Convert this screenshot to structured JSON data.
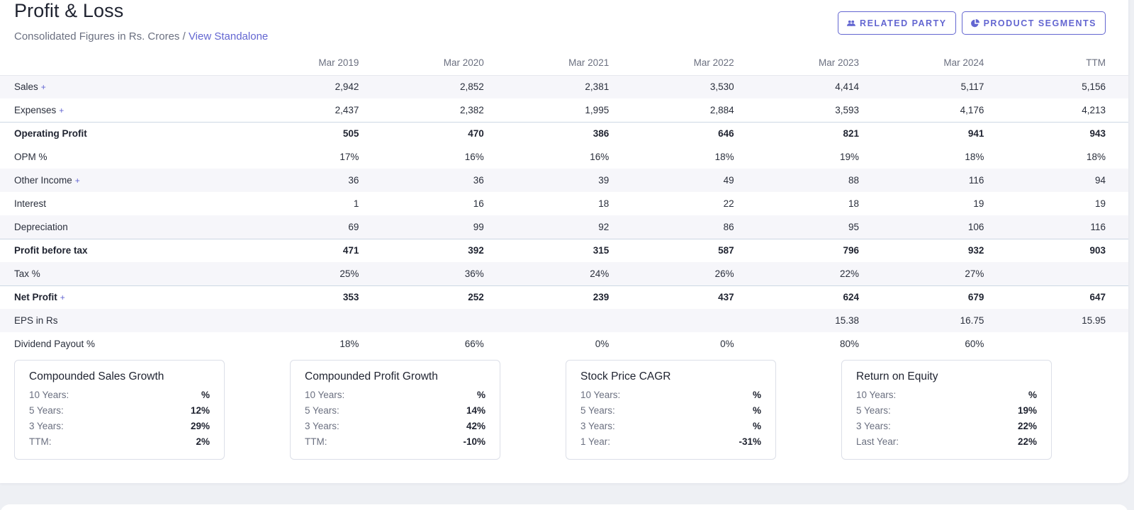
{
  "header": {
    "title": "Profit & Loss",
    "subtitle": "Consolidated Figures in Rs. Crores / ",
    "link": "View Standalone"
  },
  "buttons": {
    "related_party": "RELATED PARTY",
    "product_segments": "PRODUCT SEGMENTS"
  },
  "colors": {
    "accent": "#6366d1",
    "stripe": "#f6f6fa"
  },
  "table": {
    "columns": [
      "Mar 2019",
      "Mar 2020",
      "Mar 2021",
      "Mar 2022",
      "Mar 2023",
      "Mar 2024",
      "TTM"
    ],
    "rows": [
      {
        "label": "Sales",
        "expand": "+",
        "values": [
          "2,942",
          "2,852",
          "2,381",
          "3,530",
          "4,414",
          "5,117",
          "5,156"
        ]
      },
      {
        "label": "Expenses",
        "expand": "+",
        "values": [
          "2,437",
          "2,382",
          "1,995",
          "2,884",
          "3,593",
          "4,176",
          "4,213"
        ]
      },
      {
        "label": "Operating Profit",
        "values": [
          "505",
          "470",
          "386",
          "646",
          "821",
          "941",
          "943"
        ]
      },
      {
        "label": "OPM %",
        "values": [
          "17%",
          "16%",
          "16%",
          "18%",
          "19%",
          "18%",
          "18%"
        ]
      },
      {
        "label": "Other Income",
        "expand": "+",
        "values": [
          "36",
          "36",
          "39",
          "49",
          "88",
          "116",
          "94"
        ]
      },
      {
        "label": "Interest",
        "values": [
          "1",
          "16",
          "18",
          "22",
          "18",
          "19",
          "19"
        ]
      },
      {
        "label": "Depreciation",
        "values": [
          "69",
          "99",
          "92",
          "86",
          "95",
          "106",
          "116"
        ]
      },
      {
        "label": "Profit before tax",
        "values": [
          "471",
          "392",
          "315",
          "587",
          "796",
          "932",
          "903"
        ]
      },
      {
        "label": "Tax %",
        "values": [
          "25%",
          "36%",
          "24%",
          "26%",
          "22%",
          "27%",
          ""
        ]
      },
      {
        "label": "Net Profit",
        "expand": "+",
        "values": [
          "353",
          "252",
          "239",
          "437",
          "624",
          "679",
          "647"
        ]
      },
      {
        "label": "EPS in Rs",
        "values": [
          "",
          "",
          "",
          "",
          "15.38",
          "16.75",
          "15.95"
        ]
      },
      {
        "label": "Dividend Payout %",
        "values": [
          "18%",
          "66%",
          "0%",
          "0%",
          "80%",
          "60%",
          ""
        ]
      }
    ]
  },
  "growth": [
    {
      "title": "Compounded Sales Growth",
      "rows": [
        {
          "k": "10 Years:",
          "v": "%"
        },
        {
          "k": "5 Years:",
          "v": "12%"
        },
        {
          "k": "3 Years:",
          "v": "29%"
        },
        {
          "k": "TTM:",
          "v": "2%"
        }
      ]
    },
    {
      "title": "Compounded Profit Growth",
      "rows": [
        {
          "k": "10 Years:",
          "v": "%"
        },
        {
          "k": "5 Years:",
          "v": "14%"
        },
        {
          "k": "3 Years:",
          "v": "42%"
        },
        {
          "k": "TTM:",
          "v": "-10%"
        }
      ]
    },
    {
      "title": "Stock Price CAGR",
      "rows": [
        {
          "k": "10 Years:",
          "v": "%"
        },
        {
          "k": "5 Years:",
          "v": "%"
        },
        {
          "k": "3 Years:",
          "v": "%"
        },
        {
          "k": "1 Year:",
          "v": "-31%"
        }
      ]
    },
    {
      "title": "Return on Equity",
      "rows": [
        {
          "k": "10 Years:",
          "v": "%"
        },
        {
          "k": "5 Years:",
          "v": "19%"
        },
        {
          "k": "3 Years:",
          "v": "22%"
        },
        {
          "k": "Last Year:",
          "v": "22%"
        }
      ]
    }
  ]
}
